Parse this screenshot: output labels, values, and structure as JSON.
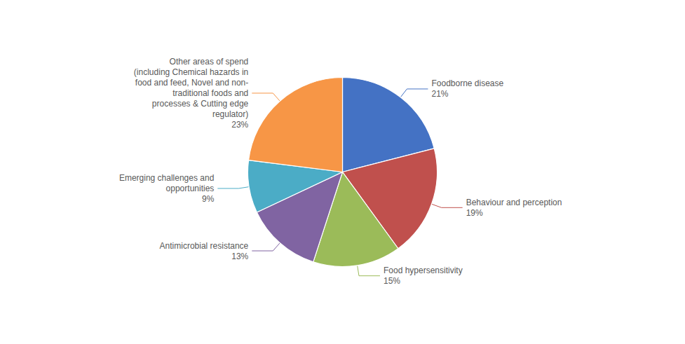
{
  "chart_data": {
    "type": "pie",
    "categories": [
      "Foodborne disease",
      "Behaviour and perception",
      "Food hypersensitivity",
      "Antimicrobial resistance",
      "Emerging challenges and\nopportunities",
      "Other areas of spend\n(including Chemical hazards in\nfood and feed, Novel and non-\ntraditional foods and\nprocesses & Cutting edge\nregulator)"
    ],
    "values": [
      21,
      19,
      15,
      13,
      9,
      23
    ],
    "value_labels": [
      "21%",
      "19%",
      "15%",
      "13%",
      "9%",
      "23%"
    ],
    "colors": [
      "#4472C4",
      "#C0504D",
      "#9BBB59",
      "#8064A2",
      "#4BACC6",
      "#F79646"
    ],
    "data_labels": true
  }
}
